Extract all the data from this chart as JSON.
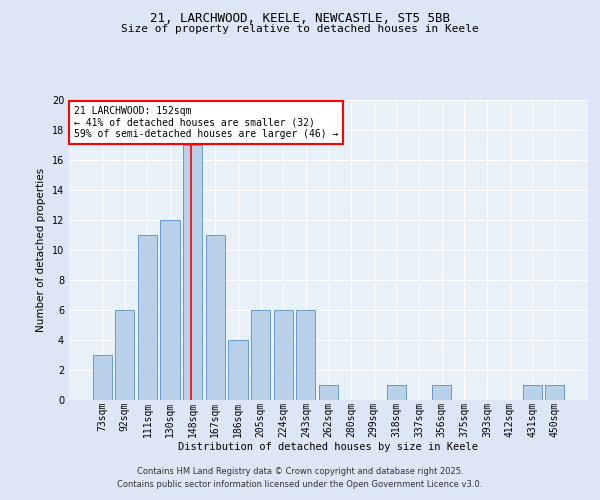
{
  "title1": "21, LARCHWOOD, KEELE, NEWCASTLE, ST5 5BB",
  "title2": "Size of property relative to detached houses in Keele",
  "xlabel": "Distribution of detached houses by size in Keele",
  "ylabel": "Number of detached properties",
  "categories": [
    "73sqm",
    "92sqm",
    "111sqm",
    "130sqm",
    "148sqm",
    "167sqm",
    "186sqm",
    "205sqm",
    "224sqm",
    "243sqm",
    "262sqm",
    "280sqm",
    "299sqm",
    "318sqm",
    "337sqm",
    "356sqm",
    "375sqm",
    "393sqm",
    "412sqm",
    "431sqm",
    "450sqm"
  ],
  "values": [
    3,
    6,
    11,
    12,
    17,
    11,
    4,
    6,
    6,
    6,
    1,
    0,
    0,
    1,
    0,
    1,
    0,
    0,
    0,
    1,
    1
  ],
  "bar_color": "#b8d0e8",
  "bar_edge_color": "#6699cc",
  "red_line_index": 4,
  "annotation_text": "21 LARCHWOOD: 152sqm\n← 41% of detached houses are smaller (32)\n59% of semi-detached houses are larger (46) →",
  "ylim": [
    0,
    20
  ],
  "yticks": [
    0,
    2,
    4,
    6,
    8,
    10,
    12,
    14,
    16,
    18,
    20
  ],
  "bg_color": "#dce6f5",
  "plot_bg_color": "#e8f0f8",
  "footer1": "Contains HM Land Registry data © Crown copyright and database right 2025.",
  "footer2": "Contains public sector information licensed under the Open Government Licence v3.0.",
  "title_fontsize": 9,
  "subtitle_fontsize": 8,
  "axis_label_fontsize": 7.5,
  "tick_fontsize": 7,
  "footer_fontsize": 6,
  "annotation_fontsize": 7
}
